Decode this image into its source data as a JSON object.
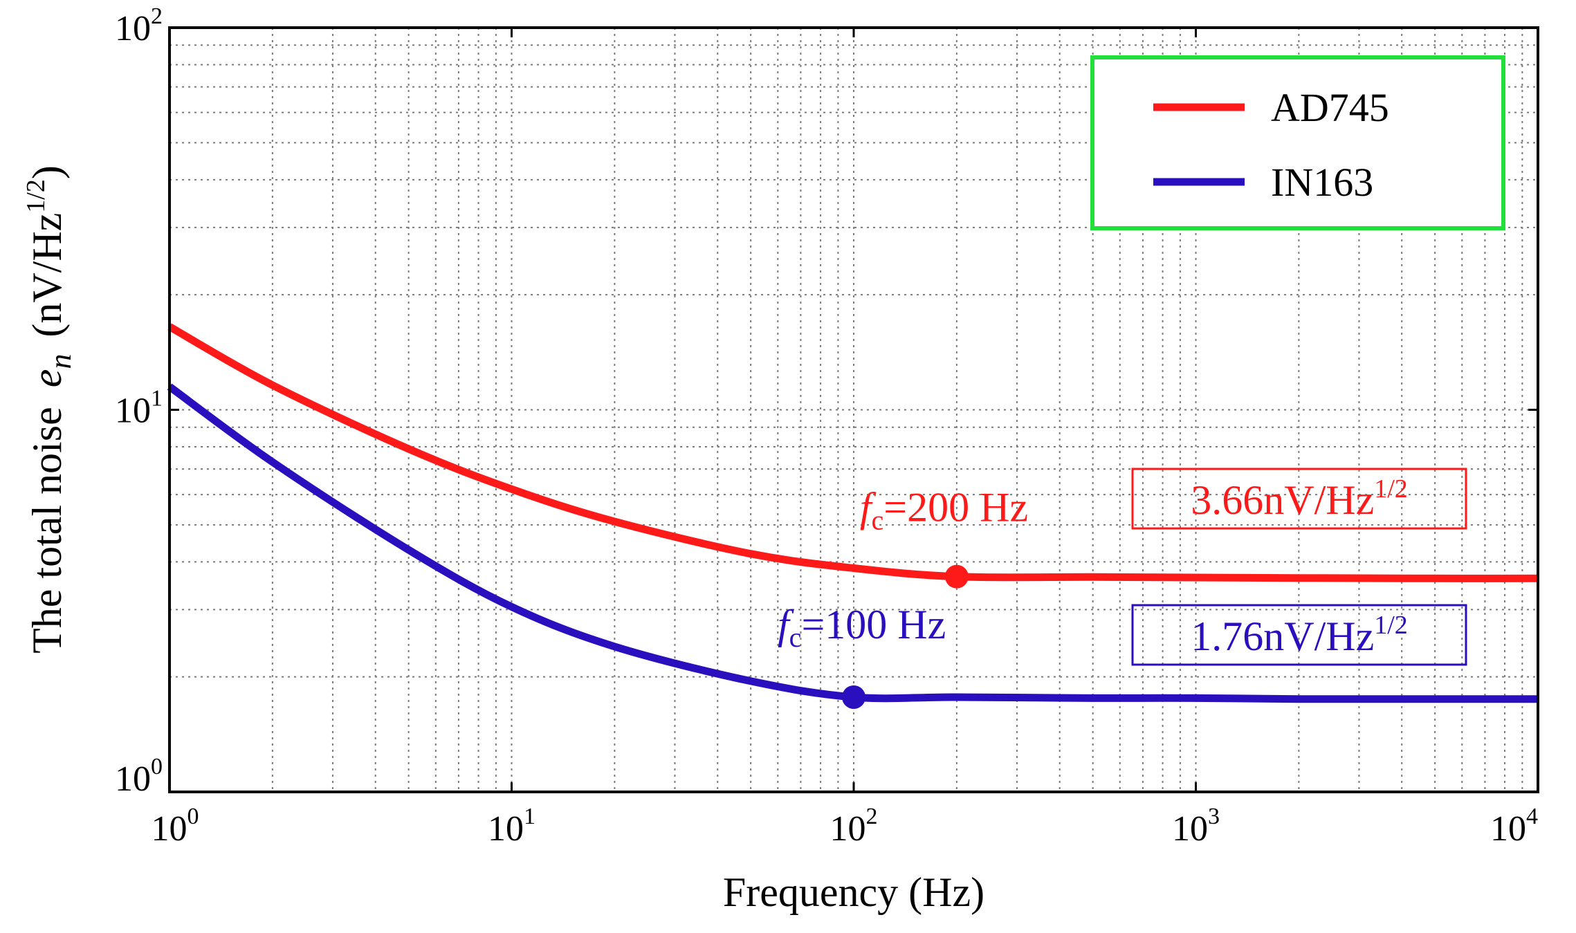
{
  "chart_data": {
    "type": "line",
    "scale": {
      "x": "log",
      "y": "log"
    },
    "xlim": [
      1,
      10000
    ],
    "ylim": [
      1,
      100
    ],
    "grid": true,
    "xlabel": "Frequency (Hz)",
    "ylabel": {
      "prefix": "The total noise",
      "symbol": "e",
      "subscript": "n",
      "unit_open": "(nV/Hz",
      "unit_exp": "1/2",
      "unit_close": ")"
    },
    "x_ticks": [
      {
        "base": "10",
        "exp": "0",
        "value": 1
      },
      {
        "base": "10",
        "exp": "1",
        "value": 10
      },
      {
        "base": "10",
        "exp": "2",
        "value": 100
      },
      {
        "base": "10",
        "exp": "3",
        "value": 1000
      },
      {
        "base": "10",
        "exp": "4",
        "value": 10000
      }
    ],
    "y_ticks": [
      {
        "base": "10",
        "exp": "0",
        "value": 1
      },
      {
        "base": "10",
        "exp": "1",
        "value": 10
      },
      {
        "base": "10",
        "exp": "2",
        "value": 100
      }
    ],
    "legend": {
      "position": "top-right",
      "border_color": "#22e03a",
      "entries": [
        {
          "label": "AD745",
          "color": "#ff1a1a"
        },
        {
          "label": "IN163",
          "color": "#2a0fbf"
        }
      ]
    },
    "series": [
      {
        "name": "AD745",
        "color": "#ff1a1a",
        "x": [
          1,
          2,
          5,
          10,
          20,
          50,
          100,
          200,
          500,
          1000,
          2000,
          5000,
          10000
        ],
        "y": [
          16.5,
          11.6,
          7.9,
          6.2,
          5.1,
          4.2,
          3.85,
          3.66,
          3.65,
          3.64,
          3.63,
          3.62,
          3.62
        ],
        "marker": {
          "x": 200,
          "y": 3.66
        }
      },
      {
        "name": "IN163",
        "color": "#2a0fbf",
        "x": [
          1,
          2,
          5,
          10,
          20,
          50,
          100,
          200,
          500,
          1000,
          2000,
          5000,
          10000
        ],
        "y": [
          11.5,
          7.3,
          4.3,
          3.05,
          2.4,
          1.95,
          1.77,
          1.77,
          1.76,
          1.76,
          1.75,
          1.75,
          1.75
        ],
        "marker": {
          "x": 100,
          "y": 1.77
        }
      }
    ],
    "annotations": [
      {
        "name": "ad745-corner",
        "color": "#ff1a1a",
        "sym": "f",
        "sub": "c",
        "text": "=200 Hz",
        "x": 200,
        "y": 3.66
      },
      {
        "name": "in163-corner",
        "color": "#2a0fbf",
        "sym": "f",
        "sub": "c",
        "text": "=100 Hz",
        "x": 100,
        "y": 1.77
      }
    ],
    "value_boxes": [
      {
        "name": "ad745-noise-floor",
        "color": "#ff1a1a",
        "text": "3.66nV/Hz",
        "exp": "1/2"
      },
      {
        "name": "in163-noise-floor",
        "color": "#2a0fbf",
        "text": "1.76nV/Hz",
        "exp": "1/2"
      }
    ]
  }
}
